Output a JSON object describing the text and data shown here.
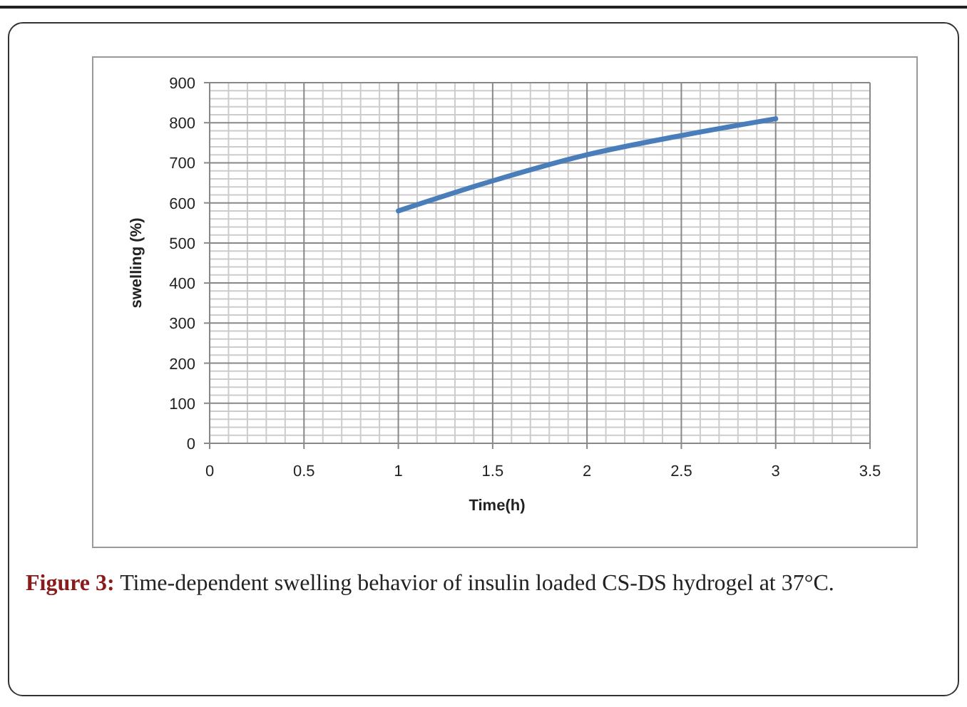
{
  "chart_data": {
    "type": "line",
    "xlabel": "Time(h)",
    "ylabel": "swelling (%)",
    "x": [
      1,
      1.5,
      2,
      2.5,
      3
    ],
    "series": [
      {
        "color": "#4a7ebb",
        "values": [
          580,
          655,
          720,
          768,
          810
        ]
      }
    ],
    "xlim": [
      0,
      3.5
    ],
    "xticks": [
      0,
      0.5,
      1,
      1.5,
      2,
      2.5,
      3,
      3.5
    ],
    "ylim": [
      0,
      900
    ],
    "yticks": [
      0,
      100,
      200,
      300,
      400,
      500,
      600,
      700,
      800,
      900
    ],
    "grid": true,
    "marker": "none",
    "line_style": "solid",
    "annotations": [
      "Figure 3: Time-dependent swelling behavior of insulin loaded CS-DS hydrogel at 37°C."
    ]
  }
}
